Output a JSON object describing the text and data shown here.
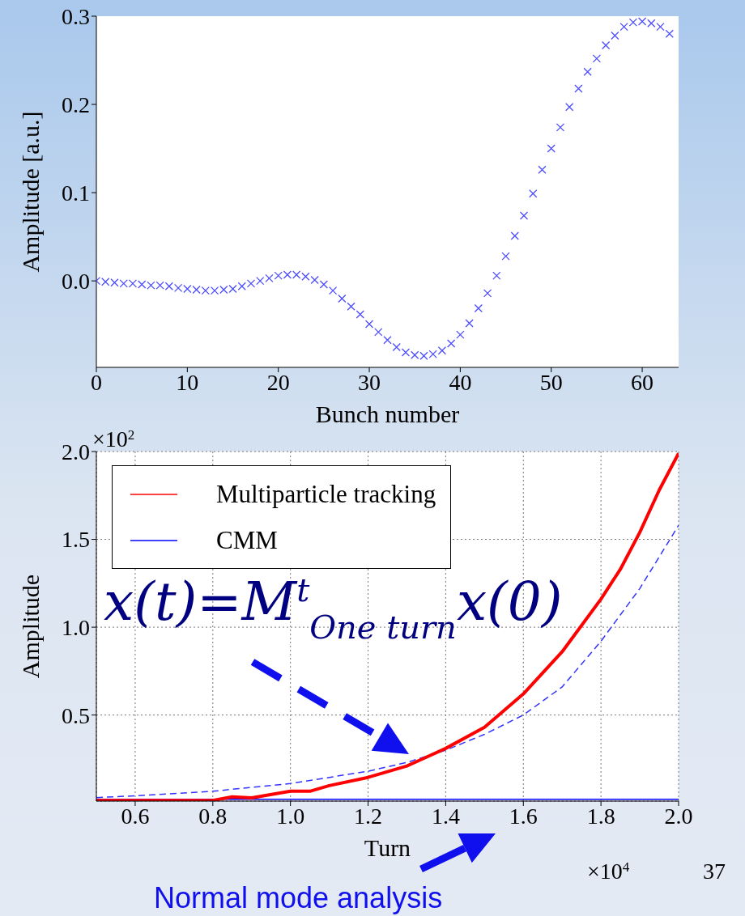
{
  "chart_data": [
    {
      "type": "scatter",
      "xlabel": "Bunch number",
      "ylabel": "Amplitude [a.u.]",
      "marker": "cross",
      "x": [
        0,
        1,
        2,
        3,
        4,
        5,
        6,
        7,
        8,
        9,
        10,
        11,
        12,
        13,
        14,
        15,
        16,
        17,
        18,
        19,
        20,
        21,
        22,
        23,
        24,
        25,
        26,
        27,
        28,
        29,
        30,
        31,
        32,
        33,
        34,
        35,
        36,
        37,
        38,
        39,
        40,
        41,
        42,
        43,
        44,
        45,
        46,
        47,
        48,
        49,
        50,
        51,
        52,
        53,
        54,
        55,
        56,
        57,
        58,
        59,
        60,
        61,
        62,
        63
      ],
      "values": [
        0,
        -0.001,
        -0.002,
        -0.003,
        -0.003,
        -0.004,
        -0.005,
        -0.005,
        -0.006,
        -0.008,
        -0.009,
        -0.01,
        -0.011,
        -0.011,
        -0.01,
        -0.009,
        -0.006,
        -0.003,
        0.0,
        0.003,
        0.006,
        0.007,
        0.007,
        0.005,
        0.001,
        -0.004,
        -0.011,
        -0.02,
        -0.029,
        -0.038,
        -0.049,
        -0.058,
        -0.067,
        -0.075,
        -0.081,
        -0.084,
        -0.085,
        -0.083,
        -0.079,
        -0.071,
        -0.061,
        -0.048,
        -0.031,
        -0.014,
        0.006,
        0.028,
        0.051,
        0.074,
        0.099,
        0.126,
        0.15,
        0.174,
        0.197,
        0.218,
        0.237,
        0.252,
        0.267,
        0.278,
        0.288,
        0.293,
        0.294,
        0.292,
        0.288,
        0.28
      ],
      "color": "#4c4cff",
      "xlim": [
        0,
        64
      ],
      "xticks": [
        0,
        10,
        20,
        30,
        40,
        50,
        60
      ],
      "ylim": [
        -0.098,
        0.3
      ],
      "yticks": [
        {
          "value": 0,
          "label": "0.0"
        },
        0.1,
        0.2,
        0.3
      ]
    },
    {
      "type": "line",
      "xlabel": "Turn",
      "ylabel": "Amplitude",
      "marker": "none",
      "grid": true,
      "legend": "top left",
      "series": [
        {
          "name": "Multiparticle tracking",
          "color": "#ff0000",
          "line_style": "solid",
          "x": [
            0.5,
            0.6,
            0.7,
            0.8,
            0.85,
            0.9,
            1.0,
            1.05,
            1.1,
            1.2,
            1.3,
            1.35,
            1.4,
            1.5,
            1.6,
            1.7,
            1.8,
            1.85,
            1.9,
            1.95,
            2.0
          ],
          "values": [
            0.013,
            0.013,
            0.013,
            0.014,
            0.034,
            0.028,
            0.066,
            0.066,
            0.098,
            0.145,
            0.21,
            0.26,
            0.31,
            0.43,
            0.62,
            0.86,
            1.16,
            1.33,
            1.54,
            1.78,
            1.99
          ]
        },
        {
          "name": "CMM",
          "color": "#0000ff",
          "line_style": "solid",
          "x": [
            0.5,
            2.0
          ],
          "values": [
            0.02,
            0.02
          ]
        },
        {
          "color": "#3333ff",
          "line_style": "dashed",
          "x": [
            0.5,
            0.6,
            0.8,
            1.0,
            1.2,
            1.3,
            1.4,
            1.5,
            1.6,
            1.7,
            1.8,
            1.9,
            2.0
          ],
          "values": [
            0.03,
            0.04,
            0.066,
            0.11,
            0.18,
            0.23,
            0.3,
            0.39,
            0.5,
            0.66,
            0.92,
            1.22,
            1.58
          ]
        }
      ],
      "xlim": [
        0.5,
        2.0
      ],
      "xticks": [
        0.6,
        0.8,
        {
          "value": 1,
          "label": "1.0"
        },
        1.2,
        1.4,
        1.6,
        1.8,
        {
          "value": 2,
          "label": "2.0"
        }
      ],
      "ylim": [
        0.01,
        2.0
      ],
      "yticks": [
        0.5,
        {
          "value": 1,
          "label": "1.0"
        },
        1.5,
        {
          "value": 2,
          "label": "2.0"
        }
      ],
      "annotations": [
        "×10$^{2}$",
        "×10$^{4}$",
        "37",
        "x(t)=M$^{t}$$_{One turn}$x(0)",
        "Normal mode analysis"
      ]
    }
  ]
}
